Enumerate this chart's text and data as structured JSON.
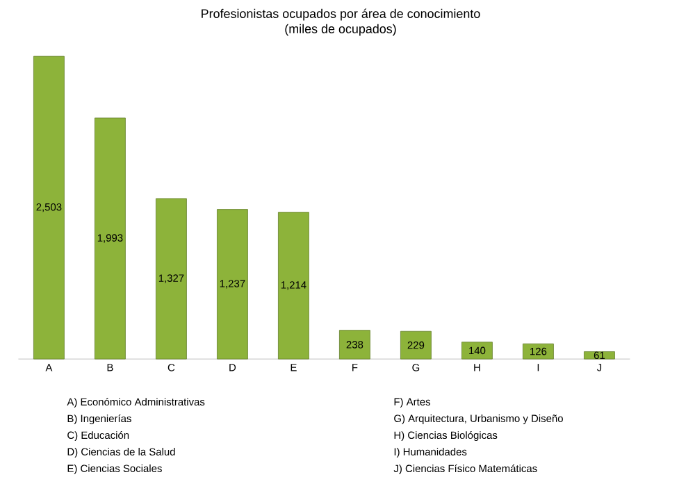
{
  "chart_data": {
    "type": "bar",
    "title": "Profesionistas ocupados por área de conocimiento\n(miles de ocupados)",
    "categories": [
      "A",
      "B",
      "C",
      "D",
      "E",
      "F",
      "G",
      "H",
      "I",
      "J"
    ],
    "values": [
      2503,
      1993,
      1327,
      1237,
      1214,
      238,
      229,
      140,
      126,
      61
    ],
    "value_labels": [
      "2,503",
      "1,993",
      "1,327",
      "1,237",
      "1,214",
      "238",
      "229",
      "140",
      "126",
      "61"
    ],
    "color": "#8db33a",
    "annotations": [
      "A) Económico Administrativas",
      "B) Ingenierías",
      "C) Educación",
      "D) Ciencias de la Salud",
      "E) Ciencias Sociales",
      "F) Artes",
      "G) Arquitectura, Urbanismo y Diseño",
      "H) Ciencias Biológicas",
      "I) Humanidades",
      "J) Ciencias Físico Matemáticas"
    ]
  }
}
